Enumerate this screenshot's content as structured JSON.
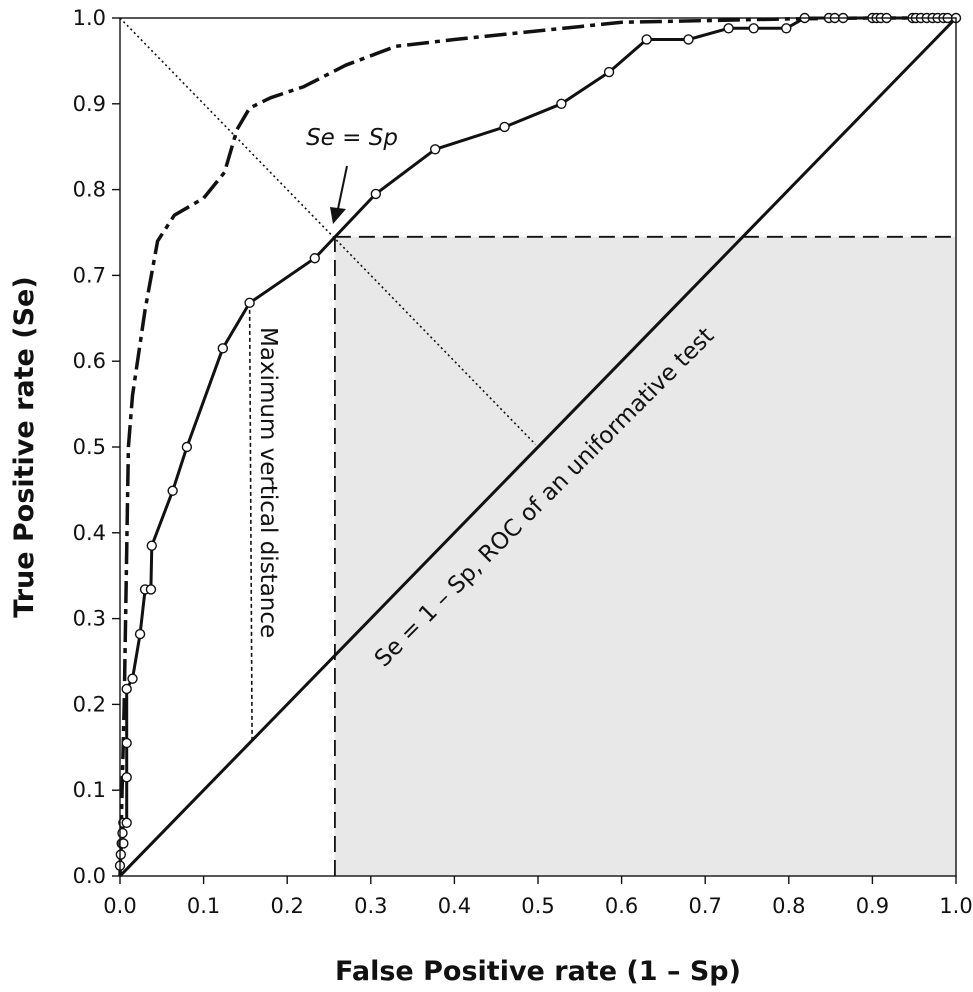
{
  "chart_data": {
    "type": "line",
    "xlabel": "False Positive rate (1 – Sp)",
    "ylabel": "True Positive rate (Se)",
    "xlim": [
      0.0,
      1.0
    ],
    "ylim": [
      0.0,
      1.0
    ],
    "xticks": [
      "0.0",
      "0.1",
      "0.2",
      "0.3",
      "0.4",
      "0.5",
      "0.6",
      "0.7",
      "0.8",
      "0.9",
      "1.0"
    ],
    "yticks": [
      "0.0",
      "0.1",
      "0.2",
      "0.3",
      "0.4",
      "0.5",
      "0.6",
      "0.7",
      "0.8",
      "0.9",
      "1.0"
    ],
    "grid": false,
    "shaded_region": {
      "x": [
        0.257,
        1.0
      ],
      "y": [
        0.0,
        0.745
      ],
      "color": "#e8e8e8"
    },
    "series": [
      {
        "style": "solid-with-markers",
        "points": [
          [
            0.0,
            0.0
          ],
          [
            0.0,
            0.012
          ],
          [
            0.001,
            0.025
          ],
          [
            0.002,
            0.038
          ],
          [
            0.004,
            0.038
          ],
          [
            0.003,
            0.05
          ],
          [
            0.004,
            0.062
          ],
          [
            0.008,
            0.062
          ],
          [
            0.008,
            0.115
          ],
          [
            0.008,
            0.155
          ],
          [
            0.008,
            0.218
          ],
          [
            0.015,
            0.23
          ],
          [
            0.024,
            0.282
          ],
          [
            0.03,
            0.334
          ],
          [
            0.037,
            0.334
          ],
          [
            0.038,
            0.385
          ],
          [
            0.063,
            0.449
          ],
          [
            0.08,
            0.5
          ],
          [
            0.123,
            0.615
          ],
          [
            0.155,
            0.668
          ],
          [
            0.233,
            0.72
          ],
          [
            0.306,
            0.795
          ],
          [
            0.377,
            0.847
          ],
          [
            0.46,
            0.873
          ],
          [
            0.528,
            0.9
          ],
          [
            0.585,
            0.937
          ],
          [
            0.63,
            0.975
          ],
          [
            0.68,
            0.975
          ],
          [
            0.728,
            0.988
          ],
          [
            0.758,
            0.988
          ],
          [
            0.797,
            0.988
          ],
          [
            0.819,
            1.0
          ],
          [
            0.848,
            1.0
          ],
          [
            0.855,
            1.0
          ],
          [
            0.865,
            1.0
          ],
          [
            0.9,
            1.0
          ],
          [
            0.905,
            1.0
          ],
          [
            0.91,
            1.0
          ],
          [
            0.917,
            1.0
          ],
          [
            0.948,
            1.0
          ],
          [
            0.952,
            1.0
          ],
          [
            0.958,
            1.0
          ],
          [
            0.965,
            1.0
          ],
          [
            0.972,
            1.0
          ],
          [
            0.978,
            1.0
          ],
          [
            0.985,
            1.0
          ],
          [
            0.99,
            1.0
          ],
          [
            1.0,
            1.0
          ]
        ]
      },
      {
        "style": "dash-dot",
        "points": [
          [
            0.0,
            0.0
          ],
          [
            0.005,
            0.2
          ],
          [
            0.01,
            0.5
          ],
          [
            0.015,
            0.56
          ],
          [
            0.03,
            0.66
          ],
          [
            0.045,
            0.74
          ],
          [
            0.065,
            0.77
          ],
          [
            0.1,
            0.79
          ],
          [
            0.125,
            0.82
          ],
          [
            0.14,
            0.87
          ],
          [
            0.155,
            0.895
          ],
          [
            0.18,
            0.907
          ],
          [
            0.22,
            0.92
          ],
          [
            0.27,
            0.945
          ],
          [
            0.33,
            0.967
          ],
          [
            0.4,
            0.975
          ],
          [
            0.5,
            0.985
          ],
          [
            0.55,
            0.99
          ],
          [
            0.6,
            0.995
          ],
          [
            0.7,
            0.997
          ],
          [
            0.8,
            0.999
          ],
          [
            0.9,
            1.0
          ],
          [
            1.0,
            1.0
          ]
        ]
      },
      {
        "style": "solid",
        "points": [
          [
            0.0,
            0.0
          ],
          [
            1.0,
            1.0
          ]
        ]
      },
      {
        "style": "dotted",
        "points": [
          [
            0.0,
            1.0
          ],
          [
            0.497,
            0.503
          ]
        ]
      }
    ],
    "reference_lines": [
      {
        "style": "long-dash",
        "points": [
          [
            0.257,
            0.0
          ],
          [
            0.257,
            0.745
          ]
        ]
      },
      {
        "style": "long-dash",
        "points": [
          [
            0.257,
            0.745
          ],
          [
            1.0,
            0.745
          ]
        ]
      },
      {
        "style": "short-dash",
        "points": [
          [
            0.155,
            0.668
          ],
          [
            0.158,
            0.158
          ]
        ]
      }
    ],
    "annotations": {
      "se_sp": "Se = Sp",
      "max_vertical": "Maximum vertical distance",
      "uninformative": "Se = 1 – Sp, ROC of an uniformative test"
    }
  }
}
